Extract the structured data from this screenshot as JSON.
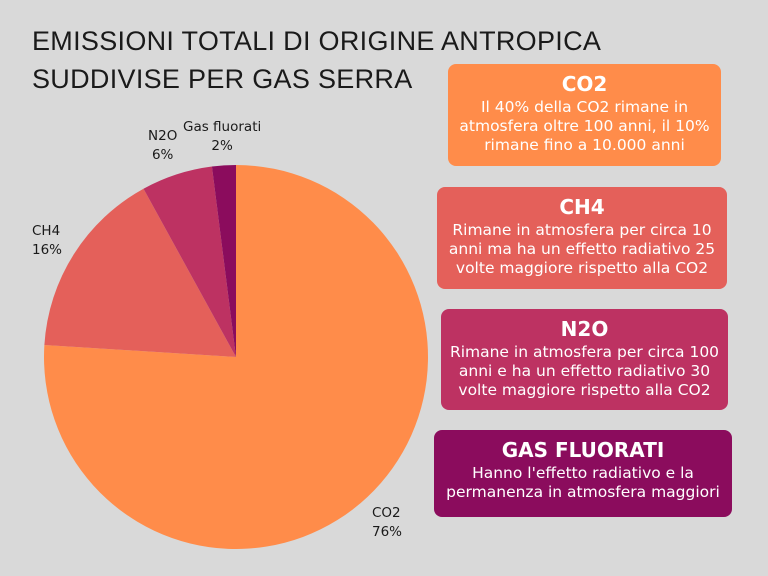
{
  "title": {
    "line1": "EMISSIONI TOTALI DI ORIGINE ANTROPICA",
    "line2": "SUDDIVISE PER GAS SERRA"
  },
  "chart_data": {
    "type": "pie",
    "title": "EMISSIONI TOTALI DI ORIGINE ANTROPICA SUDDIVISE PER GAS SERRA",
    "slices": [
      {
        "label": "CO2",
        "value": 76,
        "value_label": "76%",
        "color": "#ff8c4a"
      },
      {
        "label": "CH4",
        "value": 16,
        "value_label": "16%",
        "color": "#e4605a"
      },
      {
        "label": "N2O",
        "value": 6,
        "value_label": "6%",
        "color": "#bd3262"
      },
      {
        "label": "Gas fluorati",
        "value": 2,
        "value_label": "2%",
        "color": "#8b0c5d"
      }
    ],
    "start_angle": "12 o'clock, clockwise"
  },
  "cards": [
    {
      "title": "CO2",
      "text": "Il 40% della CO2 rimane in atmosfera oltre 100 anni, il 10% rimane fino a 10.000 anni",
      "color": "#ff8c4a"
    },
    {
      "title": "CH4",
      "text": "Rimane in atmosfera per circa 10 anni ma ha un effetto radiativo 25 volte maggiore rispetto alla CO2",
      "color": "#e4605a"
    },
    {
      "title": "N2O",
      "text": "Rimane in atmosfera per circa 100 anni e ha un effetto radiativo 30 volte maggiore rispetto alla CO2",
      "color": "#bd3262"
    },
    {
      "title": "GAS FLUORATI",
      "text": "Hanno l'effetto radiativo e la permanenza in atmosfera maggiori",
      "color": "#8b0c5d"
    }
  ]
}
